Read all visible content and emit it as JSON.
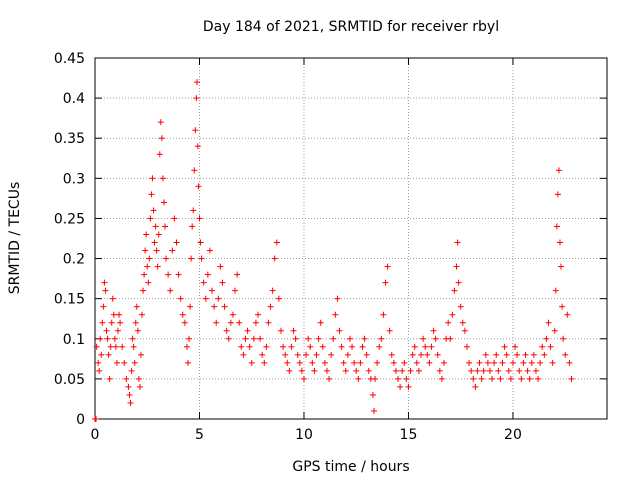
{
  "chart_data": {
    "type": "scatter",
    "title": "Day 184 of 2021, SRMTID for receiver rbyl",
    "xlabel": "GPS time / hours",
    "ylabel": "SRMTID / TECUs",
    "xlim": [
      0,
      24.5
    ],
    "ylim": [
      0,
      0.45
    ],
    "xticks": [
      0,
      5,
      10,
      15,
      20
    ],
    "yticks": [
      0,
      0.05,
      0.1,
      0.15,
      0.2,
      0.25,
      0.3,
      0.35,
      0.4,
      0.45
    ],
    "xtick_labels": [
      "0",
      "5",
      "10",
      "15",
      "20"
    ],
    "ytick_labels": [
      "0",
      "0.05",
      "0.1",
      "0.15",
      "0.2",
      "0.25",
      "0.3",
      "0.35",
      "0.4",
      "0.45"
    ],
    "grid": true,
    "marker": "+",
    "color": "#ff0000",
    "series": [
      {
        "name": "SRMTID",
        "points": [
          [
            0.0,
            0.0
          ],
          [
            0.05,
            0.0
          ],
          [
            0.08,
            0.09
          ],
          [
            0.15,
            0.07
          ],
          [
            0.2,
            0.06
          ],
          [
            0.25,
            0.1
          ],
          [
            0.3,
            0.08
          ],
          [
            0.35,
            0.12
          ],
          [
            0.4,
            0.14
          ],
          [
            0.45,
            0.17
          ],
          [
            0.5,
            0.16
          ],
          [
            0.55,
            0.11
          ],
          [
            0.6,
            0.1
          ],
          [
            0.65,
            0.08
          ],
          [
            0.7,
            0.05
          ],
          [
            0.75,
            0.09
          ],
          [
            0.8,
            0.12
          ],
          [
            0.85,
            0.15
          ],
          [
            0.9,
            0.13
          ],
          [
            0.95,
            0.1
          ],
          [
            1.0,
            0.09
          ],
          [
            1.05,
            0.07
          ],
          [
            1.1,
            0.11
          ],
          [
            1.15,
            0.13
          ],
          [
            1.2,
            0.12
          ],
          [
            1.3,
            0.09
          ],
          [
            1.4,
            0.07
          ],
          [
            1.5,
            0.05
          ],
          [
            1.6,
            0.04
          ],
          [
            1.65,
            0.03
          ],
          [
            1.7,
            0.02
          ],
          [
            1.75,
            0.06
          ],
          [
            1.8,
            0.1
          ],
          [
            1.85,
            0.09
          ],
          [
            1.9,
            0.07
          ],
          [
            1.95,
            0.12
          ],
          [
            2.0,
            0.14
          ],
          [
            2.05,
            0.11
          ],
          [
            2.1,
            0.05
          ],
          [
            2.15,
            0.04
          ],
          [
            2.2,
            0.08
          ],
          [
            2.25,
            0.13
          ],
          [
            2.3,
            0.16
          ],
          [
            2.35,
            0.18
          ],
          [
            2.4,
            0.21
          ],
          [
            2.45,
            0.23
          ],
          [
            2.5,
            0.19
          ],
          [
            2.55,
            0.17
          ],
          [
            2.6,
            0.2
          ],
          [
            2.65,
            0.25
          ],
          [
            2.7,
            0.28
          ],
          [
            2.75,
            0.3
          ],
          [
            2.8,
            0.26
          ],
          [
            2.85,
            0.22
          ],
          [
            2.9,
            0.24
          ],
          [
            2.95,
            0.21
          ],
          [
            3.0,
            0.19
          ],
          [
            3.05,
            0.23
          ],
          [
            3.1,
            0.33
          ],
          [
            3.15,
            0.37
          ],
          [
            3.2,
            0.35
          ],
          [
            3.25,
            0.3
          ],
          [
            3.3,
            0.27
          ],
          [
            3.35,
            0.24
          ],
          [
            3.4,
            0.2
          ],
          [
            3.5,
            0.18
          ],
          [
            3.6,
            0.16
          ],
          [
            3.7,
            0.21
          ],
          [
            3.8,
            0.25
          ],
          [
            3.9,
            0.22
          ],
          [
            4.0,
            0.18
          ],
          [
            4.1,
            0.15
          ],
          [
            4.2,
            0.13
          ],
          [
            4.3,
            0.12
          ],
          [
            4.4,
            0.09
          ],
          [
            4.45,
            0.07
          ],
          [
            4.5,
            0.1
          ],
          [
            4.55,
            0.14
          ],
          [
            4.6,
            0.2
          ],
          [
            4.65,
            0.24
          ],
          [
            4.7,
            0.26
          ],
          [
            4.75,
            0.31
          ],
          [
            4.8,
            0.36
          ],
          [
            4.85,
            0.4
          ],
          [
            4.88,
            0.42
          ],
          [
            4.92,
            0.34
          ],
          [
            4.95,
            0.29
          ],
          [
            5.0,
            0.25
          ],
          [
            5.05,
            0.22
          ],
          [
            5.1,
            0.2
          ],
          [
            5.2,
            0.17
          ],
          [
            5.3,
            0.15
          ],
          [
            5.4,
            0.18
          ],
          [
            5.5,
            0.21
          ],
          [
            5.6,
            0.16
          ],
          [
            5.7,
            0.14
          ],
          [
            5.8,
            0.12
          ],
          [
            5.9,
            0.15
          ],
          [
            6.0,
            0.19
          ],
          [
            6.1,
            0.17
          ],
          [
            6.2,
            0.14
          ],
          [
            6.3,
            0.11
          ],
          [
            6.4,
            0.1
          ],
          [
            6.5,
            0.12
          ],
          [
            6.6,
            0.13
          ],
          [
            6.7,
            0.16
          ],
          [
            6.8,
            0.18
          ],
          [
            6.9,
            0.12
          ],
          [
            7.0,
            0.09
          ],
          [
            7.1,
            0.08
          ],
          [
            7.2,
            0.1
          ],
          [
            7.3,
            0.11
          ],
          [
            7.4,
            0.09
          ],
          [
            7.5,
            0.07
          ],
          [
            7.6,
            0.1
          ],
          [
            7.7,
            0.12
          ],
          [
            7.8,
            0.13
          ],
          [
            7.9,
            0.1
          ],
          [
            8.0,
            0.08
          ],
          [
            8.1,
            0.07
          ],
          [
            8.2,
            0.09
          ],
          [
            8.3,
            0.12
          ],
          [
            8.4,
            0.14
          ],
          [
            8.5,
            0.16
          ],
          [
            8.6,
            0.2
          ],
          [
            8.7,
            0.22
          ],
          [
            8.8,
            0.15
          ],
          [
            8.9,
            0.11
          ],
          [
            9.0,
            0.09
          ],
          [
            9.1,
            0.08
          ],
          [
            9.2,
            0.07
          ],
          [
            9.3,
            0.06
          ],
          [
            9.4,
            0.09
          ],
          [
            9.5,
            0.11
          ],
          [
            9.6,
            0.1
          ],
          [
            9.7,
            0.08
          ],
          [
            9.8,
            0.07
          ],
          [
            9.9,
            0.06
          ],
          [
            10.0,
            0.05
          ],
          [
            10.1,
            0.08
          ],
          [
            10.2,
            0.1
          ],
          [
            10.3,
            0.09
          ],
          [
            10.4,
            0.07
          ],
          [
            10.5,
            0.06
          ],
          [
            10.6,
            0.08
          ],
          [
            10.7,
            0.1
          ],
          [
            10.8,
            0.12
          ],
          [
            10.9,
            0.09
          ],
          [
            11.0,
            0.07
          ],
          [
            11.1,
            0.06
          ],
          [
            11.2,
            0.05
          ],
          [
            11.3,
            0.08
          ],
          [
            11.4,
            0.1
          ],
          [
            11.5,
            0.13
          ],
          [
            11.6,
            0.15
          ],
          [
            11.7,
            0.11
          ],
          [
            11.8,
            0.09
          ],
          [
            11.9,
            0.07
          ],
          [
            12.0,
            0.06
          ],
          [
            12.1,
            0.08
          ],
          [
            12.2,
            0.1
          ],
          [
            12.3,
            0.09
          ],
          [
            12.4,
            0.07
          ],
          [
            12.5,
            0.06
          ],
          [
            12.6,
            0.05
          ],
          [
            12.7,
            0.07
          ],
          [
            12.8,
            0.09
          ],
          [
            12.9,
            0.1
          ],
          [
            13.0,
            0.08
          ],
          [
            13.1,
            0.06
          ],
          [
            13.2,
            0.05
          ],
          [
            13.3,
            0.03
          ],
          [
            13.35,
            0.01
          ],
          [
            13.4,
            0.05
          ],
          [
            13.5,
            0.07
          ],
          [
            13.6,
            0.09
          ],
          [
            13.7,
            0.1
          ],
          [
            13.8,
            0.13
          ],
          [
            13.9,
            0.17
          ],
          [
            14.0,
            0.19
          ],
          [
            14.1,
            0.11
          ],
          [
            14.2,
            0.08
          ],
          [
            14.3,
            0.07
          ],
          [
            14.4,
            0.06
          ],
          [
            14.5,
            0.05
          ],
          [
            14.6,
            0.04
          ],
          [
            14.7,
            0.06
          ],
          [
            14.8,
            0.07
          ],
          [
            14.9,
            0.05
          ],
          [
            15.0,
            0.04
          ],
          [
            15.1,
            0.06
          ],
          [
            15.2,
            0.08
          ],
          [
            15.3,
            0.09
          ],
          [
            15.4,
            0.07
          ],
          [
            15.5,
            0.06
          ],
          [
            15.6,
            0.08
          ],
          [
            15.7,
            0.1
          ],
          [
            15.8,
            0.09
          ],
          [
            15.9,
            0.08
          ],
          [
            16.0,
            0.07
          ],
          [
            16.1,
            0.09
          ],
          [
            16.2,
            0.11
          ],
          [
            16.3,
            0.1
          ],
          [
            16.4,
            0.08
          ],
          [
            16.5,
            0.06
          ],
          [
            16.6,
            0.05
          ],
          [
            16.7,
            0.07
          ],
          [
            16.8,
            0.1
          ],
          [
            16.9,
            0.12
          ],
          [
            17.0,
            0.1
          ],
          [
            17.1,
            0.13
          ],
          [
            17.2,
            0.16
          ],
          [
            17.3,
            0.19
          ],
          [
            17.35,
            0.22
          ],
          [
            17.4,
            0.17
          ],
          [
            17.5,
            0.14
          ],
          [
            17.6,
            0.12
          ],
          [
            17.7,
            0.11
          ],
          [
            17.8,
            0.09
          ],
          [
            17.9,
            0.07
          ],
          [
            18.0,
            0.06
          ],
          [
            18.1,
            0.05
          ],
          [
            18.2,
            0.04
          ],
          [
            18.3,
            0.06
          ],
          [
            18.4,
            0.07
          ],
          [
            18.5,
            0.05
          ],
          [
            18.6,
            0.06
          ],
          [
            18.7,
            0.08
          ],
          [
            18.8,
            0.07
          ],
          [
            18.9,
            0.06
          ],
          [
            19.0,
            0.05
          ],
          [
            19.1,
            0.07
          ],
          [
            19.2,
            0.08
          ],
          [
            19.3,
            0.06
          ],
          [
            19.4,
            0.05
          ],
          [
            19.5,
            0.07
          ],
          [
            19.6,
            0.09
          ],
          [
            19.7,
            0.08
          ],
          [
            19.8,
            0.06
          ],
          [
            19.9,
            0.05
          ],
          [
            20.0,
            0.07
          ],
          [
            20.1,
            0.09
          ],
          [
            20.2,
            0.08
          ],
          [
            20.3,
            0.06
          ],
          [
            20.4,
            0.05
          ],
          [
            20.5,
            0.07
          ],
          [
            20.6,
            0.08
          ],
          [
            20.7,
            0.06
          ],
          [
            20.8,
            0.05
          ],
          [
            20.9,
            0.07
          ],
          [
            21.0,
            0.08
          ],
          [
            21.1,
            0.06
          ],
          [
            21.2,
            0.05
          ],
          [
            21.3,
            0.07
          ],
          [
            21.4,
            0.09
          ],
          [
            21.5,
            0.08
          ],
          [
            21.6,
            0.1
          ],
          [
            21.7,
            0.12
          ],
          [
            21.8,
            0.09
          ],
          [
            21.9,
            0.07
          ],
          [
            22.0,
            0.11
          ],
          [
            22.05,
            0.16
          ],
          [
            22.1,
            0.24
          ],
          [
            22.15,
            0.28
          ],
          [
            22.2,
            0.31
          ],
          [
            22.25,
            0.22
          ],
          [
            22.3,
            0.19
          ],
          [
            22.35,
            0.14
          ],
          [
            22.4,
            0.1
          ],
          [
            22.5,
            0.08
          ],
          [
            22.6,
            0.13
          ],
          [
            22.7,
            0.07
          ],
          [
            22.8,
            0.05
          ]
        ]
      }
    ]
  }
}
